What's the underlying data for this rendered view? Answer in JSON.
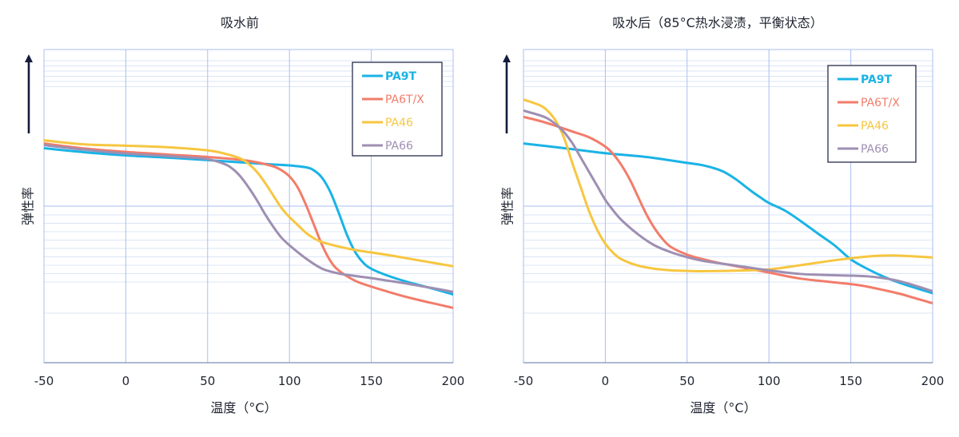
{
  "chart_data": [
    {
      "type": "line",
      "title": "吸水前",
      "xlabel": "温度（°C）",
      "ylabel": "弹性率",
      "x_ticks": [
        "-50",
        "0",
        "50",
        "100",
        "150",
        "200"
      ],
      "xlim": [
        -50,
        200
      ],
      "ylim": [
        0,
        1
      ],
      "grid": true,
      "legend_position": "top-right",
      "series": [
        {
          "name": "PA9T",
          "color": "#1ab3e6",
          "x": [
            -50,
            -25,
            0,
            25,
            50,
            75,
            90,
            100,
            110,
            115,
            120,
            125,
            130,
            135,
            140,
            145,
            150,
            160,
            170,
            180,
            190,
            200
          ],
          "y": [
            0.685,
            0.672,
            0.662,
            0.655,
            0.647,
            0.638,
            0.633,
            0.63,
            0.624,
            0.614,
            0.59,
            0.545,
            0.48,
            0.41,
            0.355,
            0.32,
            0.3,
            0.278,
            0.261,
            0.247,
            0.233,
            0.218
          ]
        },
        {
          "name": "PA6T/X",
          "color": "#f27c6a",
          "x": [
            -50,
            -25,
            0,
            25,
            50,
            70,
            80,
            90,
            95,
            100,
            105,
            110,
            115,
            120,
            125,
            130,
            140,
            150,
            160,
            170,
            180,
            190,
            200
          ],
          "y": [
            0.7,
            0.684,
            0.673,
            0.665,
            0.657,
            0.648,
            0.64,
            0.627,
            0.615,
            0.595,
            0.56,
            0.505,
            0.44,
            0.375,
            0.325,
            0.295,
            0.262,
            0.243,
            0.227,
            0.212,
            0.199,
            0.187,
            0.175
          ]
        },
        {
          "name": "PA46",
          "color": "#f7c640",
          "x": [
            -50,
            -25,
            0,
            25,
            50,
            60,
            70,
            75,
            80,
            85,
            90,
            95,
            100,
            105,
            110,
            115,
            120,
            130,
            140,
            150,
            160,
            170,
            180,
            190,
            200
          ],
          "y": [
            0.71,
            0.697,
            0.693,
            0.688,
            0.678,
            0.668,
            0.652,
            0.635,
            0.61,
            0.575,
            0.535,
            0.495,
            0.465,
            0.44,
            0.415,
            0.397,
            0.385,
            0.371,
            0.36,
            0.352,
            0.344,
            0.335,
            0.326,
            0.317,
            0.308
          ]
        },
        {
          "name": "PA66",
          "color": "#9e8fb2",
          "x": [
            -50,
            -25,
            0,
            25,
            40,
            50,
            60,
            65,
            70,
            75,
            80,
            85,
            90,
            95,
            100,
            110,
            120,
            130,
            140,
            150,
            160,
            170,
            180,
            190,
            200
          ],
          "y": [
            0.695,
            0.68,
            0.668,
            0.66,
            0.655,
            0.65,
            0.635,
            0.62,
            0.595,
            0.56,
            0.52,
            0.475,
            0.435,
            0.4,
            0.375,
            0.333,
            0.3,
            0.285,
            0.277,
            0.27,
            0.262,
            0.254,
            0.245,
            0.236,
            0.226
          ]
        }
      ]
    },
    {
      "type": "line",
      "title": "吸水后（85°C热水浸渍，平衡状态）",
      "xlabel": "温度（°C）",
      "ylabel": "弹性率",
      "x_ticks": [
        "-50",
        "0",
        "50",
        "100",
        "150",
        "200"
      ],
      "xlim": [
        -50,
        200
      ],
      "ylim": [
        0,
        1
      ],
      "grid": true,
      "legend_position": "top-right",
      "series": [
        {
          "name": "PA9T",
          "color": "#1ab3e6",
          "x": [
            -50,
            -25,
            0,
            25,
            50,
            60,
            70,
            75,
            80,
            85,
            90,
            95,
            100,
            110,
            120,
            130,
            140,
            150,
            160,
            170,
            180,
            190,
            200
          ],
          "y": [
            0.7,
            0.685,
            0.669,
            0.657,
            0.638,
            0.63,
            0.615,
            0.602,
            0.585,
            0.565,
            0.545,
            0.527,
            0.51,
            0.485,
            0.45,
            0.412,
            0.375,
            0.33,
            0.3,
            0.275,
            0.255,
            0.238,
            0.222
          ]
        },
        {
          "name": "PA6T/X",
          "color": "#f27c6a",
          "x": [
            -50,
            -40,
            -30,
            -20,
            -10,
            0,
            5,
            10,
            15,
            20,
            25,
            30,
            35,
            40,
            50,
            60,
            70,
            80,
            100,
            120,
            150,
            160,
            170,
            180,
            190,
            200
          ],
          "y": [
            0.785,
            0.772,
            0.756,
            0.738,
            0.72,
            0.69,
            0.665,
            0.63,
            0.585,
            0.53,
            0.475,
            0.43,
            0.395,
            0.37,
            0.345,
            0.33,
            0.318,
            0.308,
            0.288,
            0.268,
            0.251,
            0.243,
            0.232,
            0.22,
            0.205,
            0.19
          ]
        },
        {
          "name": "PA46",
          "color": "#f7c640",
          "x": [
            -50,
            -40,
            -35,
            -30,
            -25,
            -20,
            -15,
            -10,
            -5,
            0,
            5,
            10,
            20,
            30,
            40,
            50,
            60,
            80,
            100,
            120,
            140,
            160,
            170,
            180,
            200
          ],
          "y": [
            0.84,
            0.822,
            0.803,
            0.77,
            0.715,
            0.635,
            0.56,
            0.485,
            0.425,
            0.38,
            0.35,
            0.33,
            0.31,
            0.3,
            0.295,
            0.293,
            0.292,
            0.294,
            0.298,
            0.312,
            0.327,
            0.339,
            0.342,
            0.342,
            0.336
          ]
        },
        {
          "name": "PA66",
          "color": "#9e8fb2",
          "x": [
            -50,
            -40,
            -35,
            -30,
            -25,
            -20,
            -15,
            -10,
            -5,
            0,
            5,
            10,
            20,
            30,
            40,
            50,
            60,
            80,
            100,
            120,
            150,
            160,
            170,
            180,
            190,
            200
          ],
          "y": [
            0.805,
            0.79,
            0.779,
            0.76,
            0.735,
            0.7,
            0.655,
            0.61,
            0.565,
            0.52,
            0.485,
            0.455,
            0.41,
            0.375,
            0.353,
            0.337,
            0.325,
            0.31,
            0.295,
            0.283,
            0.278,
            0.276,
            0.27,
            0.26,
            0.245,
            0.228
          ]
        }
      ]
    }
  ]
}
